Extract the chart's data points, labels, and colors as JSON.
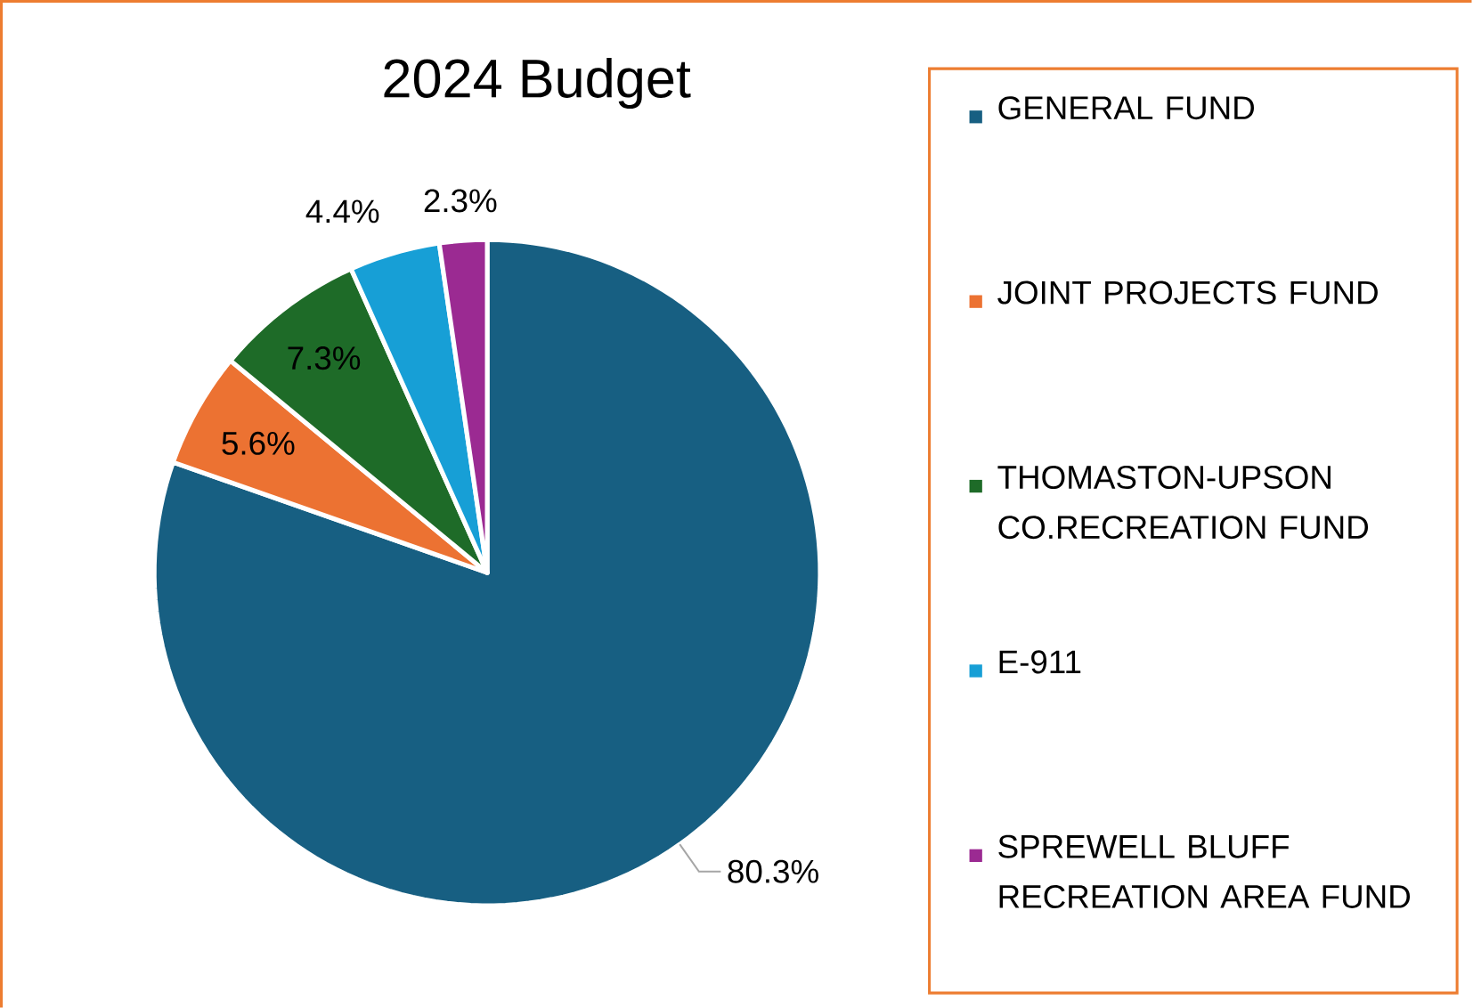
{
  "chart_data": {
    "type": "pie",
    "title": "2024 Budget",
    "categories": [
      "GENERAL FUND",
      "JOINT PROJECTS FUND",
      "THOMASTON-UPSON CO.RECREATION FUND",
      "E-911",
      "SPREWELL BLUFF RECREATION AREA FUND"
    ],
    "values": [
      80.3,
      5.6,
      7.3,
      4.4,
      2.3
    ],
    "colors": [
      "#175f82",
      "#ec7232",
      "#1e6b28",
      "#179fd6",
      "#9b2a92"
    ],
    "value_labels": [
      "80.3%",
      "5.6%",
      "7.3%",
      "4.4%",
      "2.3%"
    ],
    "legend": "right"
  }
}
